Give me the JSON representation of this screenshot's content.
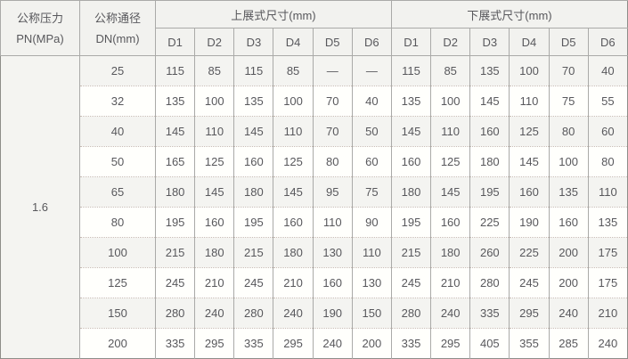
{
  "header": {
    "pressure": {
      "line1": "公称压力",
      "line2": "PN(MPa)"
    },
    "diameter": {
      "line1": "公称通径",
      "line2": "DN(mm)"
    },
    "groups": [
      {
        "label": "上展式尺寸(mm)"
      },
      {
        "label": "下展式尺寸(mm)"
      }
    ],
    "sub_headers": [
      "D1",
      "D2",
      "D3",
      "D4",
      "D5",
      "D6"
    ]
  },
  "body": {
    "pressure_value": "1.6",
    "empty_mark": "—",
    "rows": [
      {
        "dn": "25",
        "upper": [
          "115",
          "85",
          "115",
          "85",
          "—",
          "—"
        ],
        "lower": [
          "115",
          "85",
          "135",
          "100",
          "70",
          "40"
        ]
      },
      {
        "dn": "32",
        "upper": [
          "135",
          "100",
          "135",
          "100",
          "70",
          "40"
        ],
        "lower": [
          "135",
          "100",
          "145",
          "110",
          "75",
          "55"
        ]
      },
      {
        "dn": "40",
        "upper": [
          "145",
          "110",
          "145",
          "110",
          "70",
          "50"
        ],
        "lower": [
          "145",
          "110",
          "160",
          "125",
          "80",
          "60"
        ]
      },
      {
        "dn": "50",
        "upper": [
          "165",
          "125",
          "160",
          "125",
          "80",
          "60"
        ],
        "lower": [
          "160",
          "125",
          "180",
          "145",
          "100",
          "80"
        ]
      },
      {
        "dn": "65",
        "upper": [
          "180",
          "145",
          "180",
          "145",
          "95",
          "75"
        ],
        "lower": [
          "180",
          "145",
          "195",
          "160",
          "135",
          "110"
        ]
      },
      {
        "dn": "80",
        "upper": [
          "195",
          "160",
          "195",
          "160",
          "110",
          "90"
        ],
        "lower": [
          "195",
          "160",
          "225",
          "190",
          "160",
          "135"
        ]
      },
      {
        "dn": "100",
        "upper": [
          "215",
          "180",
          "215",
          "180",
          "130",
          "110"
        ],
        "lower": [
          "215",
          "180",
          "260",
          "225",
          "200",
          "175"
        ]
      },
      {
        "dn": "125",
        "upper": [
          "245",
          "210",
          "245",
          "210",
          "160",
          "130"
        ],
        "lower": [
          "245",
          "210",
          "280",
          "245",
          "200",
          "175"
        ]
      },
      {
        "dn": "150",
        "upper": [
          "280",
          "240",
          "280",
          "240",
          "190",
          "150"
        ],
        "lower": [
          "280",
          "240",
          "335",
          "295",
          "240",
          "210"
        ]
      },
      {
        "dn": "200",
        "upper": [
          "335",
          "295",
          "335",
          "295",
          "240",
          "200"
        ],
        "lower": [
          "335",
          "295",
          "405",
          "355",
          "285",
          "240"
        ]
      }
    ]
  },
  "colors": {
    "header_bg": "#f2f2ef",
    "row_alt_bg": "#f4f4f1",
    "row_bg": "#fffffc",
    "outer_border": "#8d8d88",
    "inner_border_vertical": "#aaaaa8",
    "inner_border_horizontal": "#c6bab2",
    "text": "#58585c"
  }
}
